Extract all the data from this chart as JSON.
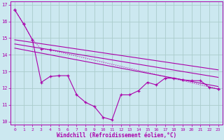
{
  "bg_color": "#cce8f0",
  "grid_color": "#aacccc",
  "line_color": "#aa00aa",
  "xlabel": "Windchill (Refroidissement éolien,°C)",
  "xlim": [
    -0.5,
    23.5
  ],
  "ylim": [
    9.8,
    17.2
  ],
  "yticks": [
    10,
    11,
    12,
    13,
    14,
    15,
    16,
    17
  ],
  "xticks": [
    0,
    1,
    2,
    3,
    4,
    5,
    6,
    7,
    8,
    9,
    10,
    11,
    12,
    13,
    14,
    15,
    16,
    17,
    18,
    19,
    20,
    21,
    22,
    23
  ],
  "main_x": [
    0,
    1,
    2,
    3,
    4,
    5,
    6,
    7,
    8,
    9,
    10,
    11,
    12,
    13,
    14,
    15,
    16,
    17,
    18,
    19,
    20,
    21,
    22,
    23
  ],
  "main_y": [
    16.7,
    15.85,
    14.9,
    12.35,
    12.7,
    12.75,
    12.75,
    11.6,
    11.15,
    10.9,
    10.25,
    10.1,
    11.6,
    11.6,
    11.85,
    12.35,
    12.2,
    12.6,
    12.6,
    12.5,
    12.45,
    12.45,
    12.05,
    11.95
  ],
  "dot_x": [
    0,
    1,
    2,
    3,
    4,
    23
  ],
  "dot_y": [
    16.7,
    15.85,
    14.9,
    14.35,
    14.3,
    11.95
  ],
  "trend1_x": [
    0,
    23
  ],
  "trend1_y": [
    14.9,
    13.1
  ],
  "trend2_x": [
    0,
    23
  ],
  "trend2_y": [
    14.65,
    12.65
  ],
  "trend3_x": [
    0,
    23
  ],
  "trend3_y": [
    14.4,
    12.1
  ]
}
